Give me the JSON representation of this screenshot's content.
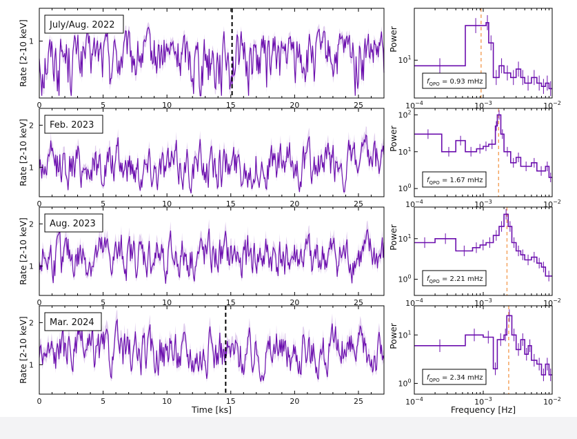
{
  "figure": {
    "left_xlabel": "Time [ks]",
    "left_ylabel": "Rate [2-10 keV]",
    "right_xlabel": "Frequency [Hz]",
    "right_ylabel": "Power",
    "colors": {
      "data": "#6a0dad",
      "error": "#c8a8e0",
      "dashed_black": "#000000",
      "dashed_orange": "#f4a460"
    }
  },
  "chart_data": [
    {
      "type": "line",
      "title": "July/Aug. 2022",
      "x": "time (ks), 0 to 27",
      "xlim": [
        0,
        27
      ],
      "xticks": [
        0,
        5,
        10,
        15,
        20,
        25
      ],
      "ylim": [
        0.3,
        2.0
      ],
      "yscale": "log",
      "yticks": [
        1
      ],
      "xlabel": "",
      "ylabel": "Rate [2-10 keV]",
      "mean": 0.75,
      "amplitude": 0.28,
      "dashed_line_x": 15.1,
      "grid": false
    },
    {
      "type": "line",
      "title": "Feb. 2023",
      "xlim": [
        0,
        27
      ],
      "xticks": [
        0,
        5,
        10,
        15,
        20,
        25
      ],
      "ylim": [
        0.3,
        2.4
      ],
      "yticks": [
        1,
        2
      ],
      "xlabel": "",
      "ylabel": "Rate [2-10 keV]",
      "mean": 1.05,
      "amplitude": 0.35,
      "dashed_line_x": null,
      "grid": false
    },
    {
      "type": "line",
      "title": "Aug. 2023",
      "xlim": [
        0,
        27
      ],
      "xticks": [
        0,
        5,
        10,
        15,
        20,
        25
      ],
      "ylim": [
        0.3,
        2.4
      ],
      "yticks": [
        1,
        2
      ],
      "xlabel": "",
      "ylabel": "Rate [2-10 keV]",
      "mean": 1.2,
      "amplitude": 0.35,
      "dashed_line_x": null,
      "grid": false
    },
    {
      "type": "line",
      "title": "Mar. 2024",
      "xlim": [
        0,
        27
      ],
      "xticks": [
        0,
        5,
        10,
        15,
        20,
        25
      ],
      "ylim": [
        0.3,
        2.4
      ],
      "yticks": [
        1,
        2
      ],
      "xlabel": "Time [ks]",
      "ylabel": "Rate [2-10 keV]",
      "mean": 1.3,
      "amplitude": 0.35,
      "dashed_line_x": 14.6,
      "grid": false
    },
    {
      "type": "line",
      "xscale": "log",
      "yscale": "log",
      "xlim": [
        0.0001,
        0.01
      ],
      "xtick_labels": [
        "10^-4",
        "10^-3",
        "10^-2"
      ],
      "ylim": [
        2.2,
        80
      ],
      "ytick_labels": [
        "10^1"
      ],
      "ylabel": "Power",
      "annotation": "f_QPO = 0.93 mHz",
      "qpo_hz": 0.00093,
      "steps": [
        [
          0.0001,
          8
        ],
        [
          0.00055,
          8
        ],
        [
          0.00055,
          40
        ],
        [
          0.0011,
          40
        ],
        [
          0.0011,
          45
        ],
        [
          0.0012,
          45
        ],
        [
          0.0012,
          20
        ],
        [
          0.0014,
          20
        ],
        [
          0.0014,
          5
        ],
        [
          0.0017,
          5
        ],
        [
          0.0017,
          8
        ],
        [
          0.002,
          8
        ],
        [
          0.002,
          6
        ],
        [
          0.0025,
          6
        ],
        [
          0.0025,
          5
        ],
        [
          0.003,
          5
        ],
        [
          0.003,
          7
        ],
        [
          0.0035,
          7
        ],
        [
          0.0035,
          5
        ],
        [
          0.004,
          5
        ],
        [
          0.004,
          4
        ],
        [
          0.005,
          4
        ],
        [
          0.005,
          5
        ],
        [
          0.006,
          5
        ],
        [
          0.006,
          4
        ],
        [
          0.007,
          4
        ],
        [
          0.007,
          3.5
        ],
        [
          0.008,
          3.5
        ],
        [
          0.008,
          4
        ],
        [
          0.009,
          4
        ],
        [
          0.009,
          3.2
        ],
        [
          0.01,
          3.2
        ]
      ]
    },
    {
      "type": "line",
      "xscale": "log",
      "yscale": "log",
      "xlim": [
        0.0001,
        0.01
      ],
      "xtick_labels": [
        "10^-4",
        "10^-3",
        "10^-2"
      ],
      "ylim": [
        0.6,
        150
      ],
      "ytick_labels": [
        "10^0",
        "10^1",
        "10^2"
      ],
      "ylabel": "Power",
      "annotation": "f_QPO = 1.67 mHz",
      "qpo_hz": 0.00167,
      "steps": [
        [
          0.0001,
          30
        ],
        [
          0.00025,
          30
        ],
        [
          0.00025,
          10
        ],
        [
          0.0004,
          10
        ],
        [
          0.0004,
          20
        ],
        [
          0.00055,
          20
        ],
        [
          0.00055,
          10
        ],
        [
          0.0008,
          10
        ],
        [
          0.0008,
          12
        ],
        [
          0.001,
          12
        ],
        [
          0.001,
          14
        ],
        [
          0.0012,
          14
        ],
        [
          0.0012,
          16
        ],
        [
          0.0015,
          16
        ],
        [
          0.0015,
          50
        ],
        [
          0.0016,
          50
        ],
        [
          0.0016,
          100
        ],
        [
          0.0018,
          100
        ],
        [
          0.0018,
          30
        ],
        [
          0.002,
          30
        ],
        [
          0.002,
          10
        ],
        [
          0.0025,
          10
        ],
        [
          0.0025,
          5
        ],
        [
          0.003,
          5
        ],
        [
          0.003,
          7
        ],
        [
          0.0035,
          7
        ],
        [
          0.0035,
          4
        ],
        [
          0.005,
          4
        ],
        [
          0.005,
          5
        ],
        [
          0.006,
          5
        ],
        [
          0.006,
          3
        ],
        [
          0.008,
          3
        ],
        [
          0.008,
          4
        ],
        [
          0.009,
          4
        ],
        [
          0.009,
          2
        ],
        [
          0.01,
          2
        ]
      ]
    },
    {
      "type": "line",
      "xscale": "log",
      "yscale": "log",
      "xlim": [
        0.0001,
        0.01
      ],
      "xtick_labels": [
        "10^-4",
        "10^-3",
        "10^-2"
      ],
      "ylim": [
        0.4,
        60
      ],
      "ytick_labels": [
        "10^0",
        "10^1"
      ],
      "ylabel": "Power",
      "annotation": "f_QPO = 2.21 mHz",
      "qpo_hz": 0.00221,
      "steps": [
        [
          0.0001,
          8
        ],
        [
          0.0002,
          8
        ],
        [
          0.0002,
          10
        ],
        [
          0.0004,
          10
        ],
        [
          0.0004,
          5
        ],
        [
          0.0007,
          5
        ],
        [
          0.0007,
          6
        ],
        [
          0.0009,
          6
        ],
        [
          0.0009,
          7
        ],
        [
          0.0011,
          7
        ],
        [
          0.0011,
          8
        ],
        [
          0.0014,
          8
        ],
        [
          0.0014,
          12
        ],
        [
          0.0017,
          12
        ],
        [
          0.0017,
          20
        ],
        [
          0.002,
          20
        ],
        [
          0.002,
          40
        ],
        [
          0.0023,
          40
        ],
        [
          0.0023,
          20
        ],
        [
          0.0026,
          20
        ],
        [
          0.0026,
          8
        ],
        [
          0.003,
          8
        ],
        [
          0.003,
          5
        ],
        [
          0.0035,
          5
        ],
        [
          0.0035,
          4
        ],
        [
          0.004,
          4
        ],
        [
          0.004,
          3
        ],
        [
          0.005,
          3
        ],
        [
          0.005,
          3.5
        ],
        [
          0.006,
          3.5
        ],
        [
          0.006,
          2.5
        ],
        [
          0.007,
          2.5
        ],
        [
          0.007,
          2
        ],
        [
          0.008,
          2
        ],
        [
          0.008,
          1.2
        ],
        [
          0.01,
          1.2
        ]
      ]
    },
    {
      "type": "line",
      "xscale": "log",
      "yscale": "log",
      "xlim": [
        0.0001,
        0.01
      ],
      "xtick_labels": [
        "10^-4",
        "10^-3",
        "10^-2"
      ],
      "ylim": [
        0.6,
        40
      ],
      "ytick_labels": [
        "10^0",
        "10^1"
      ],
      "ylabel": "Power",
      "annotation": "f_QPO = 2.34 mHz",
      "qpo_hz": 0.00234,
      "steps": [
        [
          0.0001,
          6
        ],
        [
          0.00055,
          6
        ],
        [
          0.00055,
          10
        ],
        [
          0.001,
          10
        ],
        [
          0.001,
          9
        ],
        [
          0.0014,
          9
        ],
        [
          0.0014,
          2
        ],
        [
          0.0016,
          2
        ],
        [
          0.0016,
          8
        ],
        [
          0.002,
          8
        ],
        [
          0.002,
          10
        ],
        [
          0.0022,
          10
        ],
        [
          0.0022,
          25
        ],
        [
          0.0026,
          25
        ],
        [
          0.0026,
          10
        ],
        [
          0.003,
          10
        ],
        [
          0.003,
          5
        ],
        [
          0.0035,
          5
        ],
        [
          0.0035,
          8
        ],
        [
          0.004,
          8
        ],
        [
          0.004,
          4
        ],
        [
          0.0045,
          4
        ],
        [
          0.0045,
          6
        ],
        [
          0.005,
          6
        ],
        [
          0.005,
          3
        ],
        [
          0.006,
          3
        ],
        [
          0.006,
          2.5
        ],
        [
          0.007,
          2.5
        ],
        [
          0.007,
          1.5
        ],
        [
          0.008,
          1.5
        ],
        [
          0.008,
          2.5
        ],
        [
          0.009,
          2.5
        ],
        [
          0.009,
          1.5
        ],
        [
          0.01,
          1.5
        ]
      ]
    }
  ]
}
